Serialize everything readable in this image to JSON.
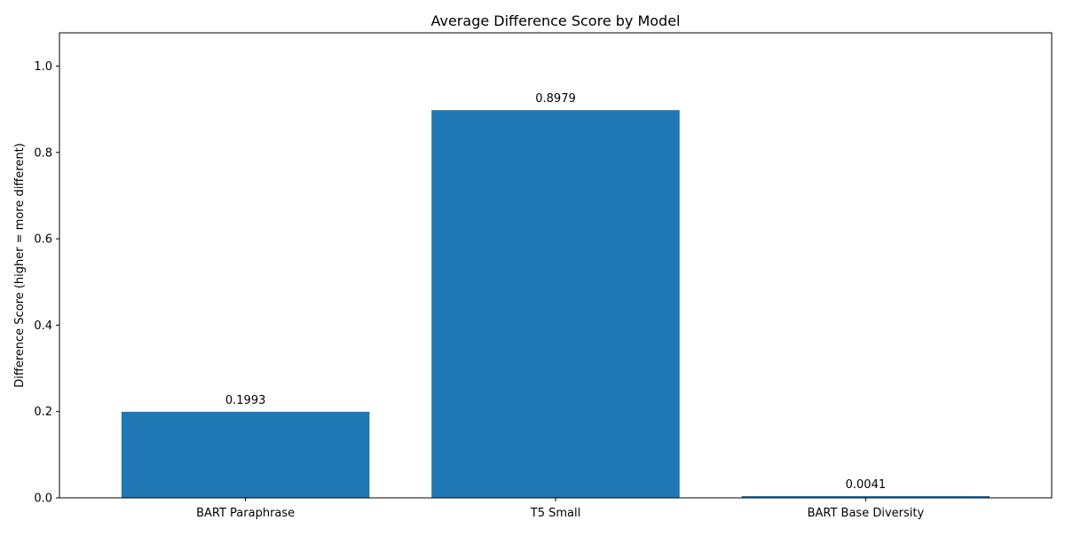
{
  "chart_data": {
    "type": "bar",
    "title": "Average Difference Score by Model",
    "xlabel": "",
    "ylabel": "Difference Score (higher = more different)",
    "categories": [
      "BART Paraphrase",
      "T5 Small",
      "BART Base Diversity"
    ],
    "values": [
      0.1993,
      0.8979,
      0.0041
    ],
    "value_labels": [
      "0.1993",
      "0.8979",
      "0.0041"
    ],
    "ylim": [
      0,
      1.077
    ],
    "yticks": [
      0.0,
      0.2,
      0.4,
      0.6,
      0.8,
      1.0
    ],
    "ytick_labels": [
      "0.0",
      "0.2",
      "0.4",
      "0.6",
      "0.8",
      "1.0"
    ],
    "grid": false,
    "bar_color": "#1f77b4"
  }
}
